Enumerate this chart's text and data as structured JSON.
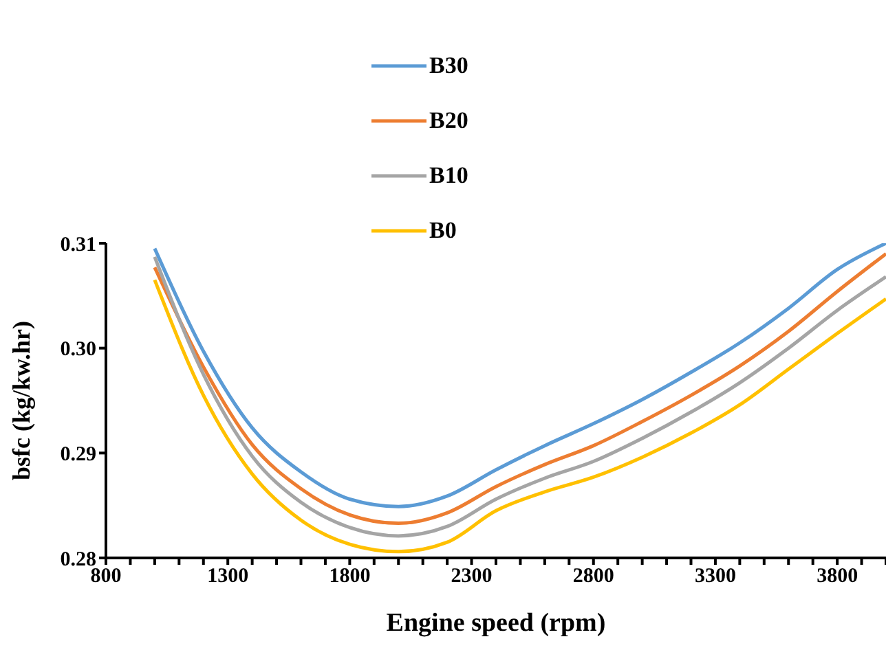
{
  "chart_data": {
    "type": "line",
    "xlabel": "Engine speed (rpm)",
    "ylabel": "bsfc (kg/kw.hr)",
    "x": [
      1000,
      1200,
      1400,
      1600,
      1800,
      2000,
      2200,
      2400,
      2600,
      2800,
      3000,
      3200,
      3400,
      3600,
      3800,
      4000
    ],
    "series": [
      {
        "name": "B30",
        "color": "#5b9bd5",
        "values": [
          0.3095,
          0.2997,
          0.2924,
          0.2882,
          0.2856,
          0.2849,
          0.2859,
          0.2884,
          0.2907,
          0.2928,
          0.2951,
          0.2977,
          0.3005,
          0.3038,
          0.3075,
          0.31
        ]
      },
      {
        "name": "B20",
        "color": "#ed7d31",
        "values": [
          0.3077,
          0.2982,
          0.2908,
          0.2866,
          0.2841,
          0.2833,
          0.2843,
          0.2868,
          0.2889,
          0.2907,
          0.293,
          0.2955,
          0.2983,
          0.3016,
          0.3054,
          0.309
        ]
      },
      {
        "name": "B10",
        "color": "#a5a5a5",
        "values": [
          0.3087,
          0.2975,
          0.2897,
          0.2853,
          0.2829,
          0.2821,
          0.283,
          0.2856,
          0.2876,
          0.2892,
          0.2914,
          0.2939,
          0.2967,
          0.3,
          0.3036,
          0.3068
        ]
      },
      {
        "name": "B0",
        "color": "#ffc000",
        "values": [
          0.3065,
          0.2955,
          0.288,
          0.2836,
          0.2813,
          0.2806,
          0.2815,
          0.2845,
          0.2863,
          0.2877,
          0.2896,
          0.2919,
          0.2946,
          0.298,
          0.3014,
          0.3047
        ]
      }
    ],
    "xlim": [
      800,
      4000
    ],
    "xticks": [
      800,
      {
        "value": 900,
        "label": null
      },
      {
        "value": 1000,
        "label": null
      },
      {
        "value": 1100,
        "label": null
      },
      {
        "value": 1200,
        "label": null
      },
      1300,
      {
        "value": 1400,
        "label": null
      },
      {
        "value": 1500,
        "label": null
      },
      {
        "value": 1600,
        "label": null
      },
      {
        "value": 1700,
        "label": null
      },
      1800,
      {
        "value": 1900,
        "label": null
      },
      {
        "value": 2000,
        "label": null
      },
      {
        "value": 2100,
        "label": null
      },
      {
        "value": 2200,
        "label": null
      },
      2300,
      {
        "value": 2400,
        "label": null
      },
      {
        "value": 2500,
        "label": null
      },
      {
        "value": 2600,
        "label": null
      },
      {
        "value": 2700,
        "label": null
      },
      2800,
      {
        "value": 2900,
        "label": null
      },
      {
        "value": 3000,
        "label": null
      },
      {
        "value": 3100,
        "label": null
      },
      {
        "value": 3200,
        "label": null
      },
      3300,
      {
        "value": 3400,
        "label": null
      },
      {
        "value": 3500,
        "label": null
      },
      {
        "value": 3600,
        "label": null
      },
      {
        "value": 3700,
        "label": null
      },
      3800,
      {
        "value": 3900,
        "label": null
      },
      {
        "value": 4000,
        "label": null
      }
    ],
    "ylim": [
      0.28,
      0.31
    ],
    "yticks": [
      {
        "value": 0.28,
        "label": "0.28"
      },
      {
        "value": 0.29,
        "label": "0.29"
      },
      {
        "value": 0.3,
        "label": "0.30"
      },
      {
        "value": 0.31,
        "label": "0.31"
      }
    ],
    "grid": false,
    "legend": "top",
    "marker": "none",
    "line_style": "solid"
  }
}
